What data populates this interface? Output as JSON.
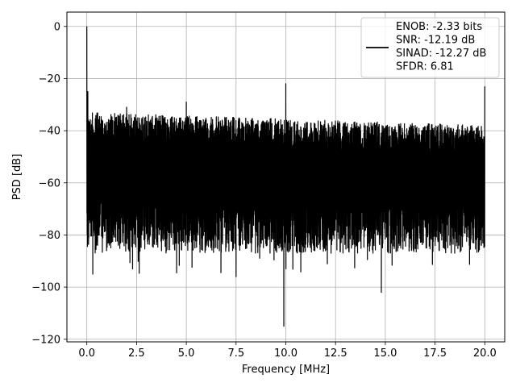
{
  "chart_data": {
    "type": "line",
    "title": "",
    "xlabel": "Frequency [MHz]",
    "ylabel": "PSD [dB]",
    "xlim": [
      -1.0,
      21.0
    ],
    "ylim": [
      -121,
      5.5
    ],
    "x_ticks": [
      0.0,
      2.5,
      5.0,
      7.5,
      10.0,
      12.5,
      15.0,
      17.5,
      20.0
    ],
    "x_tick_labels": [
      "0.0",
      "2.5",
      "5.0",
      "7.5",
      "10.0",
      "12.5",
      "15.0",
      "17.5",
      "20.0"
    ],
    "y_ticks": [
      0,
      -20,
      -40,
      -60,
      -80,
      -100,
      -120
    ],
    "y_tick_labels": [
      "0",
      "−20",
      "−40",
      "−60",
      "−80",
      "−100",
      "−120"
    ],
    "grid": true,
    "legend_position": "top-right",
    "legend_lines": [
      "ENOB: -2.33 bits",
      "SNR: -12.19 dB",
      "SINAD: -12.27 dB",
      "SFDR: 6.81"
    ],
    "series": [
      {
        "color": "#000000",
        "noise_floor": {
          "x_range": [
            0.0,
            20.0
          ],
          "upper_envelope_db": [
            -33,
            -38
          ],
          "typical_low_db": -80,
          "deep_nulls_db": -100
        },
        "peaks": [
          {
            "x": 0.0,
            "y": 0
          },
          {
            "x": 0.05,
            "y": -25
          },
          {
            "x": 2.0,
            "y": -31
          },
          {
            "x": 5.0,
            "y": -29
          },
          {
            "x": 10.0,
            "y": -22
          },
          {
            "x": 20.0,
            "y": -23
          }
        ],
        "nulls": [
          {
            "x": 0.3,
            "y": -95
          },
          {
            "x": 2.3,
            "y": -93
          },
          {
            "x": 7.5,
            "y": -96
          },
          {
            "x": 9.9,
            "y": -115
          },
          {
            "x": 14.8,
            "y": -102
          }
        ]
      }
    ]
  }
}
